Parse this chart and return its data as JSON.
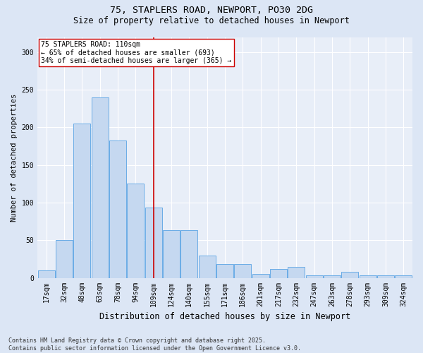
{
  "title1": "75, STAPLERS ROAD, NEWPORT, PO30 2DG",
  "title2": "Size of property relative to detached houses in Newport",
  "xlabel": "Distribution of detached houses by size in Newport",
  "ylabel": "Number of detached properties",
  "categories": [
    "17sqm",
    "32sqm",
    "48sqm",
    "63sqm",
    "78sqm",
    "94sqm",
    "109sqm",
    "124sqm",
    "140sqm",
    "155sqm",
    "171sqm",
    "186sqm",
    "201sqm",
    "217sqm",
    "232sqm",
    "247sqm",
    "263sqm",
    "278sqm",
    "293sqm",
    "309sqm",
    "324sqm"
  ],
  "values": [
    10,
    50,
    205,
    240,
    183,
    125,
    93,
    63,
    63,
    30,
    18,
    18,
    5,
    12,
    15,
    3,
    3,
    8,
    3,
    3,
    3
  ],
  "bar_color": "#c5d8f0",
  "bar_edge_color": "#6aace6",
  "vline_color": "#cc0000",
  "annotation_text": "75 STAPLERS ROAD: 110sqm\n← 65% of detached houses are smaller (693)\n34% of semi-detached houses are larger (365) →",
  "annotation_box_color": "#ffffff",
  "annotation_box_edge": "#cc0000",
  "ylim": [
    0,
    320
  ],
  "yticks": [
    0,
    50,
    100,
    150,
    200,
    250,
    300
  ],
  "footer": "Contains HM Land Registry data © Crown copyright and database right 2025.\nContains public sector information licensed under the Open Government Licence v3.0.",
  "bg_color": "#dce6f5",
  "plot_bg_color": "#e8eef8",
  "fig_width": 6.0,
  "fig_height": 5.0,
  "title1_fontsize": 9.5,
  "title2_fontsize": 8.5,
  "tick_fontsize": 7,
  "ylabel_fontsize": 7.5,
  "xlabel_fontsize": 8.5,
  "footer_fontsize": 6,
  "annot_fontsize": 7
}
